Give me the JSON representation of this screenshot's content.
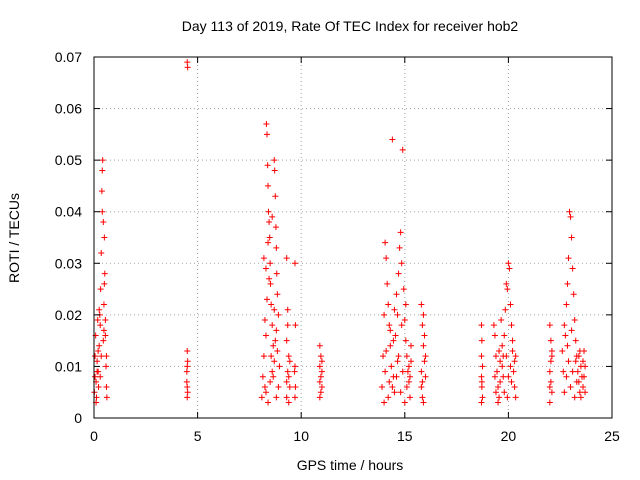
{
  "chart_data": {
    "type": "scatter",
    "title": "Day 113 of 2019, Rate Of TEC Index for receiver hob2",
    "xlabel": "GPS time / hours",
    "ylabel": "ROTI / TECUs",
    "xlim": [
      0,
      25
    ],
    "ylim": [
      0,
      0.07
    ],
    "xticks": [
      0,
      5,
      10,
      15,
      20,
      25
    ],
    "xtick_labels": [
      "0",
      "5",
      "10",
      "15",
      "20",
      "25"
    ],
    "yticks": [
      0,
      0.01,
      0.02,
      0.03,
      0.04,
      0.05,
      0.06,
      0.07
    ],
    "ytick_labels": [
      "0",
      "0.01",
      "0.02",
      "0.03",
      "0.04",
      "0.05",
      "0.06",
      "0.07"
    ],
    "grid": true,
    "marker": "plus",
    "color": "#ff0000",
    "series": [
      {
        "name": "hob2",
        "points": [
          [
            0.02,
            0.005
          ],
          [
            0.05,
            0.012
          ],
          [
            0.08,
            0.016
          ],
          [
            0.1,
            0.007
          ],
          [
            0.12,
            0.004
          ],
          [
            0.15,
            0.011
          ],
          [
            0.18,
            0.019
          ],
          [
            0.2,
            0.009
          ],
          [
            0.22,
            0.006
          ],
          [
            0.25,
            0.014
          ],
          [
            0.28,
            0.02
          ],
          [
            0.3,
            0.008
          ],
          [
            0.32,
            0.025
          ],
          [
            0.35,
            0.012
          ],
          [
            0.38,
            0.044
          ],
          [
            0.4,
            0.048
          ],
          [
            0.42,
            0.05
          ],
          [
            0.45,
            0.015
          ],
          [
            0.48,
            0.022
          ],
          [
            0.5,
            0.035
          ],
          [
            0.52,
            0.028
          ],
          [
            0.55,
            0.019
          ],
          [
            0.58,
            0.01
          ],
          [
            0.6,
            0.006
          ],
          [
            0.62,
            0.004
          ],
          [
            0.3,
            0.018
          ],
          [
            0.2,
            0.013
          ],
          [
            0.1,
            0.003
          ],
          [
            0.4,
            0.04
          ],
          [
            0.45,
            0.038
          ],
          [
            0.35,
            0.032
          ],
          [
            0.5,
            0.026
          ],
          [
            0.55,
            0.016
          ],
          [
            0.15,
            0.009
          ],
          [
            0.25,
            0.021
          ],
          [
            0.05,
            0.008
          ],
          [
            0.6,
            0.012
          ],
          [
            0.48,
            0.017
          ],
          [
            4.5,
            0.069
          ],
          [
            4.52,
            0.068
          ],
          [
            4.5,
            0.013
          ],
          [
            4.52,
            0.011
          ],
          [
            4.48,
            0.009
          ],
          [
            4.5,
            0.006
          ],
          [
            4.52,
            0.005
          ],
          [
            4.5,
            0.004
          ],
          [
            4.48,
            0.007
          ],
          [
            4.5,
            0.01
          ],
          [
            8.1,
            0.004
          ],
          [
            8.15,
            0.008
          ],
          [
            8.2,
            0.012
          ],
          [
            8.25,
            0.006
          ],
          [
            8.3,
            0.016
          ],
          [
            8.32,
            0.057
          ],
          [
            8.35,
            0.055
          ],
          [
            8.38,
            0.049
          ],
          [
            8.4,
            0.045
          ],
          [
            8.42,
            0.04
          ],
          [
            8.45,
            0.038
          ],
          [
            8.48,
            0.035
          ],
          [
            8.5,
            0.03
          ],
          [
            8.52,
            0.026
          ],
          [
            8.55,
            0.022
          ],
          [
            8.6,
            0.018
          ],
          [
            8.65,
            0.014
          ],
          [
            8.7,
            0.05
          ],
          [
            8.72,
            0.048
          ],
          [
            8.75,
            0.043
          ],
          [
            8.78,
            0.037
          ],
          [
            8.8,
            0.033
          ],
          [
            8.82,
            0.028
          ],
          [
            8.85,
            0.024
          ],
          [
            8.9,
            0.02
          ],
          [
            8.95,
            0.01
          ],
          [
            8.3,
            0.005
          ],
          [
            8.4,
            0.003
          ],
          [
            8.5,
            0.007
          ],
          [
            8.6,
            0.009
          ],
          [
            8.7,
            0.011
          ],
          [
            8.8,
            0.004
          ],
          [
            8.9,
            0.006
          ],
          [
            8.25,
            0.019
          ],
          [
            8.35,
            0.023
          ],
          [
            8.45,
            0.027
          ],
          [
            8.55,
            0.012
          ],
          [
            8.65,
            0.008
          ],
          [
            8.75,
            0.015
          ],
          [
            8.85,
            0.013
          ],
          [
            8.2,
            0.031
          ],
          [
            8.3,
            0.029
          ],
          [
            8.4,
            0.034
          ],
          [
            8.6,
            0.039
          ],
          [
            8.7,
            0.021
          ],
          [
            8.8,
            0.017
          ],
          [
            9.3,
            0.031
          ],
          [
            9.35,
            0.021
          ],
          [
            9.3,
            0.015
          ],
          [
            9.4,
            0.012
          ],
          [
            9.35,
            0.009
          ],
          [
            9.45,
            0.006
          ],
          [
            9.3,
            0.004
          ],
          [
            9.4,
            0.003
          ],
          [
            9.35,
            0.018
          ],
          [
            9.45,
            0.011
          ],
          [
            9.4,
            0.008
          ],
          [
            9.3,
            0.007
          ],
          [
            9.7,
            0.03
          ],
          [
            9.72,
            0.018
          ],
          [
            9.7,
            0.01
          ],
          [
            9.68,
            0.009
          ],
          [
            9.72,
            0.006
          ],
          [
            9.7,
            0.004
          ],
          [
            10.9,
            0.014
          ],
          [
            10.95,
            0.012
          ],
          [
            10.9,
            0.01
          ],
          [
            11.0,
            0.009
          ],
          [
            10.95,
            0.008
          ],
          [
            10.9,
            0.007
          ],
          [
            11.0,
            0.006
          ],
          [
            10.95,
            0.005
          ],
          [
            10.9,
            0.004
          ],
          [
            11.0,
            0.011
          ],
          [
            13.9,
            0.006
          ],
          [
            13.95,
            0.012
          ],
          [
            14.0,
            0.02
          ],
          [
            14.05,
            0.034
          ],
          [
            14.1,
            0.031
          ],
          [
            14.15,
            0.026
          ],
          [
            14.2,
            0.022
          ],
          [
            14.25,
            0.018
          ],
          [
            14.3,
            0.014
          ],
          [
            14.35,
            0.01
          ],
          [
            14.4,
            0.054
          ],
          [
            14.45,
            0.008
          ],
          [
            14.5,
            0.005
          ],
          [
            14.55,
            0.016
          ],
          [
            14.6,
            0.024
          ],
          [
            14.65,
            0.02
          ],
          [
            14.7,
            0.028
          ],
          [
            14.75,
            0.033
          ],
          [
            14.8,
            0.036
          ],
          [
            14.85,
            0.03
          ],
          [
            14.9,
            0.052
          ],
          [
            14.95,
            0.025
          ],
          [
            15.0,
            0.019
          ],
          [
            15.05,
            0.015
          ],
          [
            15.1,
            0.012
          ],
          [
            15.15,
            0.009
          ],
          [
            15.2,
            0.007
          ],
          [
            15.25,
            0.004
          ],
          [
            15.3,
            0.011
          ],
          [
            14.0,
            0.003
          ],
          [
            14.2,
            0.004
          ],
          [
            14.4,
            0.006
          ],
          [
            14.6,
            0.008
          ],
          [
            14.8,
            0.005
          ],
          [
            15.0,
            0.003
          ],
          [
            15.2,
            0.01
          ],
          [
            14.1,
            0.013
          ],
          [
            14.3,
            0.017
          ],
          [
            14.5,
            0.021
          ],
          [
            14.7,
            0.012
          ],
          [
            14.9,
            0.009
          ],
          [
            15.1,
            0.006
          ],
          [
            15.3,
            0.014
          ],
          [
            14.05,
            0.009
          ],
          [
            14.25,
            0.007
          ],
          [
            14.45,
            0.015
          ],
          [
            14.65,
            0.011
          ],
          [
            14.85,
            0.018
          ],
          [
            15.05,
            0.022
          ],
          [
            15.25,
            0.008
          ],
          [
            15.8,
            0.022
          ],
          [
            15.85,
            0.018
          ],
          [
            15.9,
            0.014
          ],
          [
            15.95,
            0.011
          ],
          [
            16.0,
            0.008
          ],
          [
            15.8,
            0.006
          ],
          [
            15.85,
            0.004
          ],
          [
            15.9,
            0.003
          ],
          [
            15.95,
            0.016
          ],
          [
            16.0,
            0.012
          ],
          [
            15.8,
            0.009
          ],
          [
            15.9,
            0.02
          ],
          [
            15.85,
            0.007
          ],
          [
            18.7,
            0.018
          ],
          [
            18.72,
            0.015
          ],
          [
            18.7,
            0.012
          ],
          [
            18.75,
            0.01
          ],
          [
            18.7,
            0.008
          ],
          [
            18.72,
            0.006
          ],
          [
            18.75,
            0.004
          ],
          [
            18.7,
            0.003
          ],
          [
            18.72,
            0.007
          ],
          [
            19.3,
            0.018
          ],
          [
            19.35,
            0.016
          ],
          [
            19.4,
            0.012
          ],
          [
            19.45,
            0.009
          ],
          [
            19.5,
            0.006
          ],
          [
            19.55,
            0.004
          ],
          [
            19.6,
            0.011
          ],
          [
            19.65,
            0.019
          ],
          [
            19.7,
            0.014
          ],
          [
            19.75,
            0.008
          ],
          [
            19.8,
            0.016
          ],
          [
            19.85,
            0.021
          ],
          [
            19.9,
            0.026
          ],
          [
            19.95,
            0.025
          ],
          [
            20.0,
            0.03
          ],
          [
            20.05,
            0.029
          ],
          [
            20.1,
            0.022
          ],
          [
            20.15,
            0.018
          ],
          [
            20.2,
            0.013
          ],
          [
            20.25,
            0.009
          ],
          [
            20.3,
            0.006
          ],
          [
            20.35,
            0.004
          ],
          [
            19.4,
            0.005
          ],
          [
            19.5,
            0.003
          ],
          [
            19.6,
            0.007
          ],
          [
            19.7,
            0.01
          ],
          [
            19.8,
            0.005
          ],
          [
            19.9,
            0.012
          ],
          [
            20.0,
            0.008
          ],
          [
            20.1,
            0.01
          ],
          [
            20.2,
            0.015
          ],
          [
            20.3,
            0.011
          ],
          [
            19.35,
            0.008
          ],
          [
            19.55,
            0.013
          ],
          [
            19.75,
            0.012
          ],
          [
            19.95,
            0.004
          ],
          [
            20.15,
            0.007
          ],
          [
            20.35,
            0.012
          ],
          [
            22.0,
            0.018
          ],
          [
            22.05,
            0.015
          ],
          [
            22.1,
            0.012
          ],
          [
            22.0,
            0.009
          ],
          [
            22.05,
            0.007
          ],
          [
            22.1,
            0.005
          ],
          [
            22.0,
            0.003
          ],
          [
            22.05,
            0.011
          ],
          [
            22.1,
            0.013
          ],
          [
            22.0,
            0.006
          ],
          [
            22.6,
            0.013
          ],
          [
            22.7,
            0.018
          ],
          [
            22.75,
            0.016
          ],
          [
            22.8,
            0.022
          ],
          [
            22.85,
            0.026
          ],
          [
            22.9,
            0.031
          ],
          [
            22.95,
            0.04
          ],
          [
            23.0,
            0.039
          ],
          [
            23.05,
            0.035
          ],
          [
            23.1,
            0.029
          ],
          [
            23.15,
            0.024
          ],
          [
            23.2,
            0.019
          ],
          [
            23.25,
            0.015
          ],
          [
            23.3,
            0.012
          ],
          [
            23.35,
            0.009
          ],
          [
            23.4,
            0.007
          ],
          [
            23.45,
            0.005
          ],
          [
            23.5,
            0.004
          ],
          [
            23.55,
            0.008
          ],
          [
            23.6,
            0.011
          ],
          [
            23.65,
            0.013
          ],
          [
            23.7,
            0.01
          ],
          [
            22.7,
            0.005
          ],
          [
            22.8,
            0.008
          ],
          [
            22.9,
            0.011
          ],
          [
            23.0,
            0.006
          ],
          [
            23.1,
            0.009
          ],
          [
            23.2,
            0.004
          ],
          [
            23.3,
            0.007
          ],
          [
            23.4,
            0.012
          ],
          [
            23.5,
            0.01
          ],
          [
            23.6,
            0.006
          ],
          [
            23.7,
            0.005
          ],
          [
            22.65,
            0.009
          ],
          [
            22.85,
            0.014
          ],
          [
            23.05,
            0.017
          ],
          [
            23.25,
            0.011
          ],
          [
            23.45,
            0.013
          ],
          [
            23.65,
            0.008
          ]
        ]
      }
    ]
  }
}
